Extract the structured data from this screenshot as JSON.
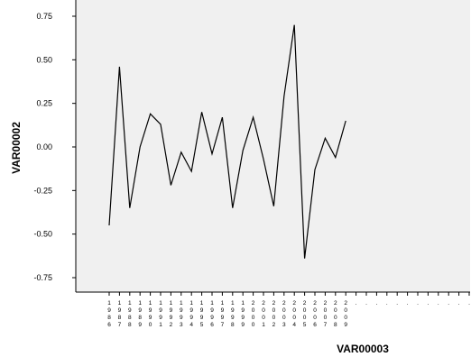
{
  "chart_data": {
    "type": "line",
    "xlabel": "VAR00003",
    "ylabel": "VAR00002",
    "ylim": [
      -0.8,
      0.8
    ],
    "yticks": [
      -0.75,
      -0.5,
      -0.25,
      0.0,
      0.25,
      0.5,
      0.75
    ],
    "ytick_labels": [
      "-0.75",
      "-0.50",
      "-0.25",
      "0.00",
      "0.25",
      "0.50",
      "0.75"
    ],
    "categories": [
      "1986",
      "1987",
      "1988",
      "1989",
      "1990",
      "1991",
      "1992",
      "1993",
      "1994",
      "1995",
      "1996",
      "1997",
      "1998",
      "1999",
      "2000",
      "2001",
      "2002",
      "2003",
      "2004",
      "2005",
      "2006",
      "2007",
      "2008",
      "2009"
    ],
    "empty_category_label": ".",
    "empty_category_count": 12,
    "series": [
      {
        "values": [
          -0.45,
          0.46,
          -0.35,
          0.0,
          0.19,
          0.13,
          -0.22,
          -0.03,
          -0.14,
          0.2,
          -0.04,
          0.17,
          -0.35,
          -0.02,
          0.17,
          -0.07,
          -0.34,
          0.29,
          0.7,
          -0.64,
          -0.13,
          0.05,
          -0.06,
          0.15
        ]
      }
    ],
    "colors": {
      "plot_background": "#f0f0f0",
      "line": "#000000",
      "axis": "#000000"
    },
    "grid": false,
    "legend": "none"
  }
}
